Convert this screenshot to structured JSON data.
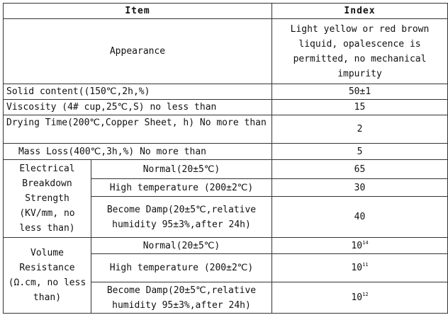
{
  "header": {
    "item": "Item",
    "index": "Index"
  },
  "rows": {
    "appearance": {
      "item": "Appearance",
      "index": "Light yellow or red brown liquid, opalescence is permitted, no mechanical impurity"
    },
    "solid": {
      "item": "Solid content((150℃,2h,%)",
      "index": "50±1"
    },
    "viscosity": {
      "item": "Viscosity (4# cup,25℃,S) no less than",
      "index": "15"
    },
    "drying": {
      "item": "Drying Time(200℃,Copper Sheet, h) No more than",
      "index": "2"
    },
    "massloss": {
      "item": "Mass Loss(400℃,3h,%) No more than",
      "index": "5"
    },
    "breakdown": {
      "group": "Electrical Breakdown Strength (KV/mm, no less than)",
      "normal": {
        "item": "Normal(20±5℃)",
        "index": "65"
      },
      "high": {
        "item": "High temperature (200±2℃)",
        "index": "30"
      },
      "damp": {
        "item": "Become Damp(20±5℃,relative humidity 95±3%,after 24h)",
        "index": "40"
      }
    },
    "resistance": {
      "group": "Volume Resistance (Ω.cm, no less than)",
      "normal": {
        "item": "Normal(20±5℃)",
        "base": "10",
        "exp": "14"
      },
      "high": {
        "item": "High temperature (200±2℃)",
        "base": "10",
        "exp": "11"
      },
      "damp": {
        "item": "Become Damp(20±5℃,relative humidity 95±3%,after 24h)",
        "base": "10",
        "exp": "12"
      }
    }
  }
}
